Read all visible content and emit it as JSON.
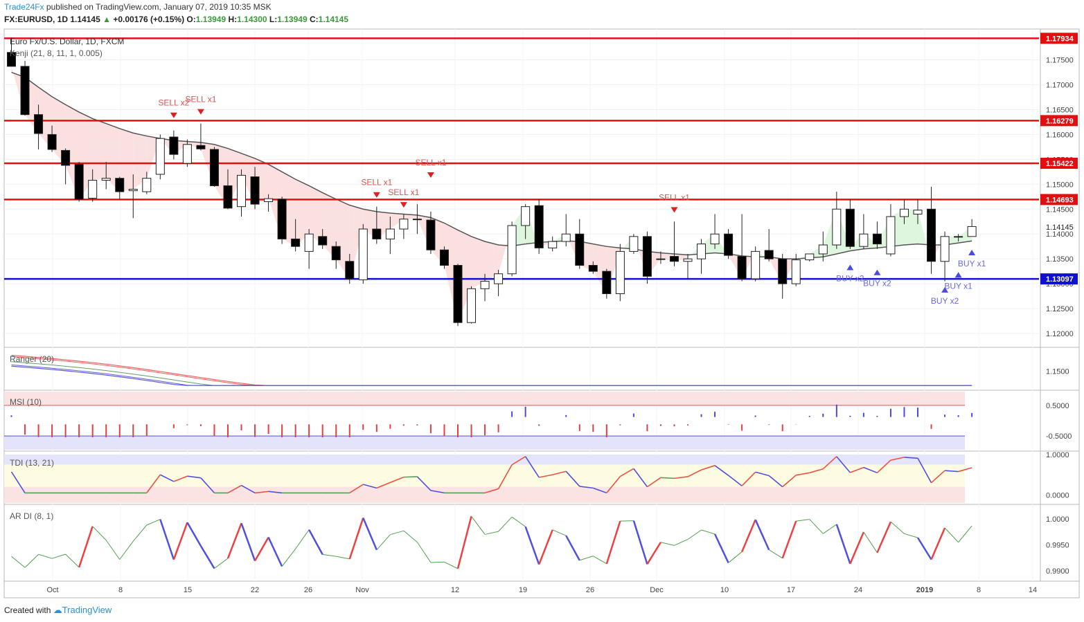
{
  "header": {
    "brand": "Trade24Fx",
    "published": " published on TradingView.com, January 07, 2019 10:35 MSK",
    "symbol": "FX:EURUSD, 1D",
    "price": "1.14145",
    "change": "+0.00176 (+0.15%)",
    "o_label": "O:",
    "o_value": "1.13949",
    "h_label": "H:",
    "h_value": "1.14300",
    "l_label": "L:",
    "l_value": "1.13949",
    "c_label": "C:",
    "c_value": "1.14145"
  },
  "main_legend": {
    "instrument": "Euro Fx/U.S. Dollar, 1D, FXCM",
    "indicator": "Kenji (21, 8, 11, 1, 0.005)"
  },
  "pane_labels": {
    "ranger": "Ranger (20)",
    "msi": "MSI (10)",
    "tdi": "TDI (13, 21)",
    "ardi": "AR DI (8, 1)"
  },
  "footer": {
    "created": "Created with",
    "brand": "TradingView"
  },
  "colors": {
    "bull": "#ffffff",
    "bear": "#000000",
    "hline_red": "#e01010",
    "hline_blue": "#1010d0",
    "sell": "#e05050",
    "buy": "#6a6ae0"
  },
  "chart_data": [
    {
      "type": "candlestick",
      "title": "Euro Fx/U.S. Dollar, 1D, FXCM",
      "ylim": [
        1.1175,
        1.1805
      ],
      "x_ticks": [
        "Oct",
        "8",
        "15",
        "22",
        "26",
        "Nov",
        "12",
        "19",
        "26",
        "Dec",
        "10",
        "17",
        "24",
        "2019",
        "8",
        "14"
      ],
      "y_ticks": [
        "1.12000",
        "1.12500",
        "1.13000",
        "1.13500",
        "1.14000",
        "1.14500",
        "1.15000",
        "1.15500",
        "1.16000",
        "1.16500",
        "1.17000",
        "1.17500"
      ],
      "last_price": "1.14145",
      "levels": [
        {
          "value": 1.17934,
          "label": "1.17934",
          "color": "#e01010"
        },
        {
          "value": 1.16279,
          "label": "1.16279",
          "color": "#e01010"
        },
        {
          "value": 1.15422,
          "label": "1.15422",
          "color": "#e01010"
        },
        {
          "value": 1.14693,
          "label": "1.14693",
          "color": "#e01010"
        },
        {
          "value": 1.13097,
          "label": "1.13097",
          "color": "#1010d0"
        }
      ],
      "candles": [
        [
          1.1765,
          1.1795,
          1.1738,
          1.1737
        ],
        [
          1.1737,
          1.1748,
          1.1638,
          1.164
        ],
        [
          1.164,
          1.166,
          1.157,
          1.1602
        ],
        [
          1.16,
          1.1618,
          1.1565,
          1.157
        ],
        [
          1.1568,
          1.1572,
          1.15,
          1.1538
        ],
        [
          1.154,
          1.1545,
          1.1465,
          1.147
        ],
        [
          1.1472,
          1.153,
          1.1465,
          1.1508
        ],
        [
          1.1508,
          1.1545,
          1.149,
          1.1512
        ],
        [
          1.1512,
          1.1515,
          1.147,
          1.1485
        ],
        [
          1.1487,
          1.152,
          1.1432,
          1.149
        ],
        [
          1.1485,
          1.1525,
          1.148,
          1.1512
        ],
        [
          1.152,
          1.16,
          1.151,
          1.1592
        ],
        [
          1.1595,
          1.1608,
          1.155,
          1.156
        ],
        [
          1.1542,
          1.159,
          1.1535,
          1.158
        ],
        [
          1.1578,
          1.1622,
          1.1568,
          1.1571
        ],
        [
          1.157,
          1.1575,
          1.1495,
          1.1497
        ],
        [
          1.1497,
          1.153,
          1.145,
          1.1452
        ],
        [
          1.1455,
          1.153,
          1.1435,
          1.1518
        ],
        [
          1.1515,
          1.1535,
          1.145,
          1.146
        ],
        [
          1.1465,
          1.148,
          1.1445,
          1.1471
        ],
        [
          1.147,
          1.1475,
          1.138,
          1.139
        ],
        [
          1.139,
          1.143,
          1.1365,
          1.1375
        ],
        [
          1.1365,
          1.141,
          1.133,
          1.14
        ],
        [
          1.1395,
          1.141,
          1.137,
          1.1378
        ],
        [
          1.1375,
          1.1385,
          1.133,
          1.1348
        ],
        [
          1.1345,
          1.136,
          1.13,
          1.131
        ],
        [
          1.1308,
          1.142,
          1.13,
          1.141
        ],
        [
          1.141,
          1.1455,
          1.138,
          1.139
        ],
        [
          1.139,
          1.1435,
          1.136,
          1.141
        ],
        [
          1.141,
          1.144,
          1.139,
          1.143
        ],
        [
          1.143,
          1.146,
          1.14,
          1.143
        ],
        [
          1.1428,
          1.1445,
          1.136,
          1.1368
        ],
        [
          1.1368,
          1.1375,
          1.133,
          1.1337
        ],
        [
          1.1337,
          1.134,
          1.1215,
          1.1222
        ],
        [
          1.1222,
          1.1295,
          1.122,
          1.129
        ],
        [
          1.129,
          1.132,
          1.1265,
          1.1305
        ],
        [
          1.13,
          1.1328,
          1.1275,
          1.132
        ],
        [
          1.132,
          1.1425,
          1.1315,
          1.1417
        ],
        [
          1.1417,
          1.146,
          1.139,
          1.1455
        ],
        [
          1.1457,
          1.147,
          1.136,
          1.1372
        ],
        [
          1.1372,
          1.1395,
          1.1365,
          1.1385
        ],
        [
          1.1385,
          1.144,
          1.1375,
          1.14
        ],
        [
          1.14,
          1.143,
          1.133,
          1.1337
        ],
        [
          1.1337,
          1.1345,
          1.132,
          1.1325
        ],
        [
          1.1325,
          1.133,
          1.127,
          1.128
        ],
        [
          1.128,
          1.138,
          1.1265,
          1.1365
        ],
        [
          1.1365,
          1.14,
          1.136,
          1.1395
        ],
        [
          1.1395,
          1.1405,
          1.13,
          1.1315
        ],
        [
          1.135,
          1.1365,
          1.134,
          1.135
        ],
        [
          1.1355,
          1.1425,
          1.1335,
          1.1345
        ],
        [
          1.1345,
          1.136,
          1.131,
          1.135
        ],
        [
          1.135,
          1.139,
          1.132,
          1.138
        ],
        [
          1.138,
          1.144,
          1.137,
          1.14
        ],
        [
          1.14,
          1.141,
          1.135,
          1.1357
        ],
        [
          1.1355,
          1.144,
          1.1305,
          1.131
        ],
        [
          1.131,
          1.1375,
          1.1305,
          1.1365
        ],
        [
          1.1367,
          1.141,
          1.1345,
          1.135
        ],
        [
          1.135,
          1.136,
          1.127,
          1.13
        ],
        [
          1.13,
          1.136,
          1.1295,
          1.1348
        ],
        [
          1.1348,
          1.136,
          1.1345,
          1.136
        ],
        [
          1.136,
          1.1405,
          1.1345,
          1.1378
        ],
        [
          1.1378,
          1.1485,
          1.137,
          1.145
        ],
        [
          1.145,
          1.147,
          1.137,
          1.1375
        ],
        [
          1.1375,
          1.144,
          1.137,
          1.14
        ],
        [
          1.14,
          1.1425,
          1.137,
          1.138
        ],
        [
          1.136,
          1.146,
          1.1355,
          1.1435
        ],
        [
          1.1435,
          1.147,
          1.142,
          1.145
        ],
        [
          1.144,
          1.147,
          1.142,
          1.1448
        ],
        [
          1.145,
          1.1495,
          1.132,
          1.1345
        ],
        [
          1.1345,
          1.1405,
          1.1305,
          1.1395
        ],
        [
          1.1395,
          1.14,
          1.1385,
          1.1395
        ],
        [
          1.1395,
          1.143,
          1.1395,
          1.1415
        ]
      ],
      "baseline": [
        1.1725,
        1.1715,
        1.1695,
        1.1676,
        1.166,
        1.1645,
        1.1632,
        1.1622,
        1.1612,
        1.1603,
        1.1597,
        1.1592,
        1.1588,
        1.1586,
        1.1584,
        1.158,
        1.1572,
        1.1562,
        1.1552,
        1.154,
        1.1525,
        1.151,
        1.1497,
        1.1483,
        1.147,
        1.1458,
        1.145,
        1.1445,
        1.1442,
        1.144,
        1.1438,
        1.1433,
        1.1422,
        1.1408,
        1.1395,
        1.1385,
        1.1378,
        1.1376,
        1.138,
        1.1383,
        1.1385,
        1.1386,
        1.1385,
        1.138,
        1.1375,
        1.1372,
        1.137,
        1.1365,
        1.1362,
        1.136,
        1.1358,
        1.136,
        1.1362,
        1.136,
        1.1356,
        1.1354,
        1.1354,
        1.135,
        1.135,
        1.1352,
        1.1354,
        1.136,
        1.1366,
        1.137,
        1.1372,
        1.1375,
        1.1378,
        1.138,
        1.1378,
        1.1378,
        1.1382,
        1.1386
      ],
      "annotations": [
        {
          "text": "SELL x2",
          "kind": "sell",
          "i": 12,
          "price": 1.1658
        },
        {
          "text": "SELL x1",
          "kind": "sell",
          "i": 14,
          "price": 1.1665
        },
        {
          "text": "SELL x1",
          "kind": "sell",
          "i": 27,
          "price": 1.1498
        },
        {
          "text": "SELL x1",
          "kind": "sell",
          "i": 29,
          "price": 1.1478
        },
        {
          "text": "SELL x1",
          "kind": "sell",
          "i": 31,
          "price": 1.1538
        },
        {
          "text": "SELL x1",
          "kind": "sell",
          "i": 49,
          "price": 1.1468
        },
        {
          "text": "BUY x2",
          "kind": "buy",
          "i": 62,
          "price": 1.1305
        },
        {
          "text": "BUY x2",
          "kind": "buy",
          "i": 64,
          "price": 1.1295
        },
        {
          "text": "BUY x2",
          "kind": "buy",
          "i": 69,
          "price": 1.126
        },
        {
          "text": "BUY x1",
          "kind": "buy",
          "i": 70,
          "price": 1.129
        },
        {
          "text": "BUY x1",
          "kind": "buy",
          "i": 71,
          "price": 1.1335
        }
      ]
    },
    {
      "type": "line",
      "title": "Ranger (20)",
      "y_ticks": [
        "1.1500"
      ],
      "ylim": [
        1.1375,
        1.1665
      ]
    },
    {
      "type": "bar",
      "title": "MSI (10)",
      "y_ticks": [
        "0.5000",
        "-0.5000"
      ],
      "ylim": [
        -0.95,
        0.95
      ]
    },
    {
      "type": "line",
      "title": "TDI (13, 21)",
      "y_ticks": [
        "1.0000",
        "0.0000"
      ],
      "ylim": [
        -0.2,
        1.05
      ]
    },
    {
      "type": "line",
      "title": "AR DI (8, 1)",
      "y_ticks": [
        "1.0000",
        "0.9950",
        "0.9900"
      ],
      "ylim": [
        0.9883,
        1.0025
      ]
    }
  ]
}
